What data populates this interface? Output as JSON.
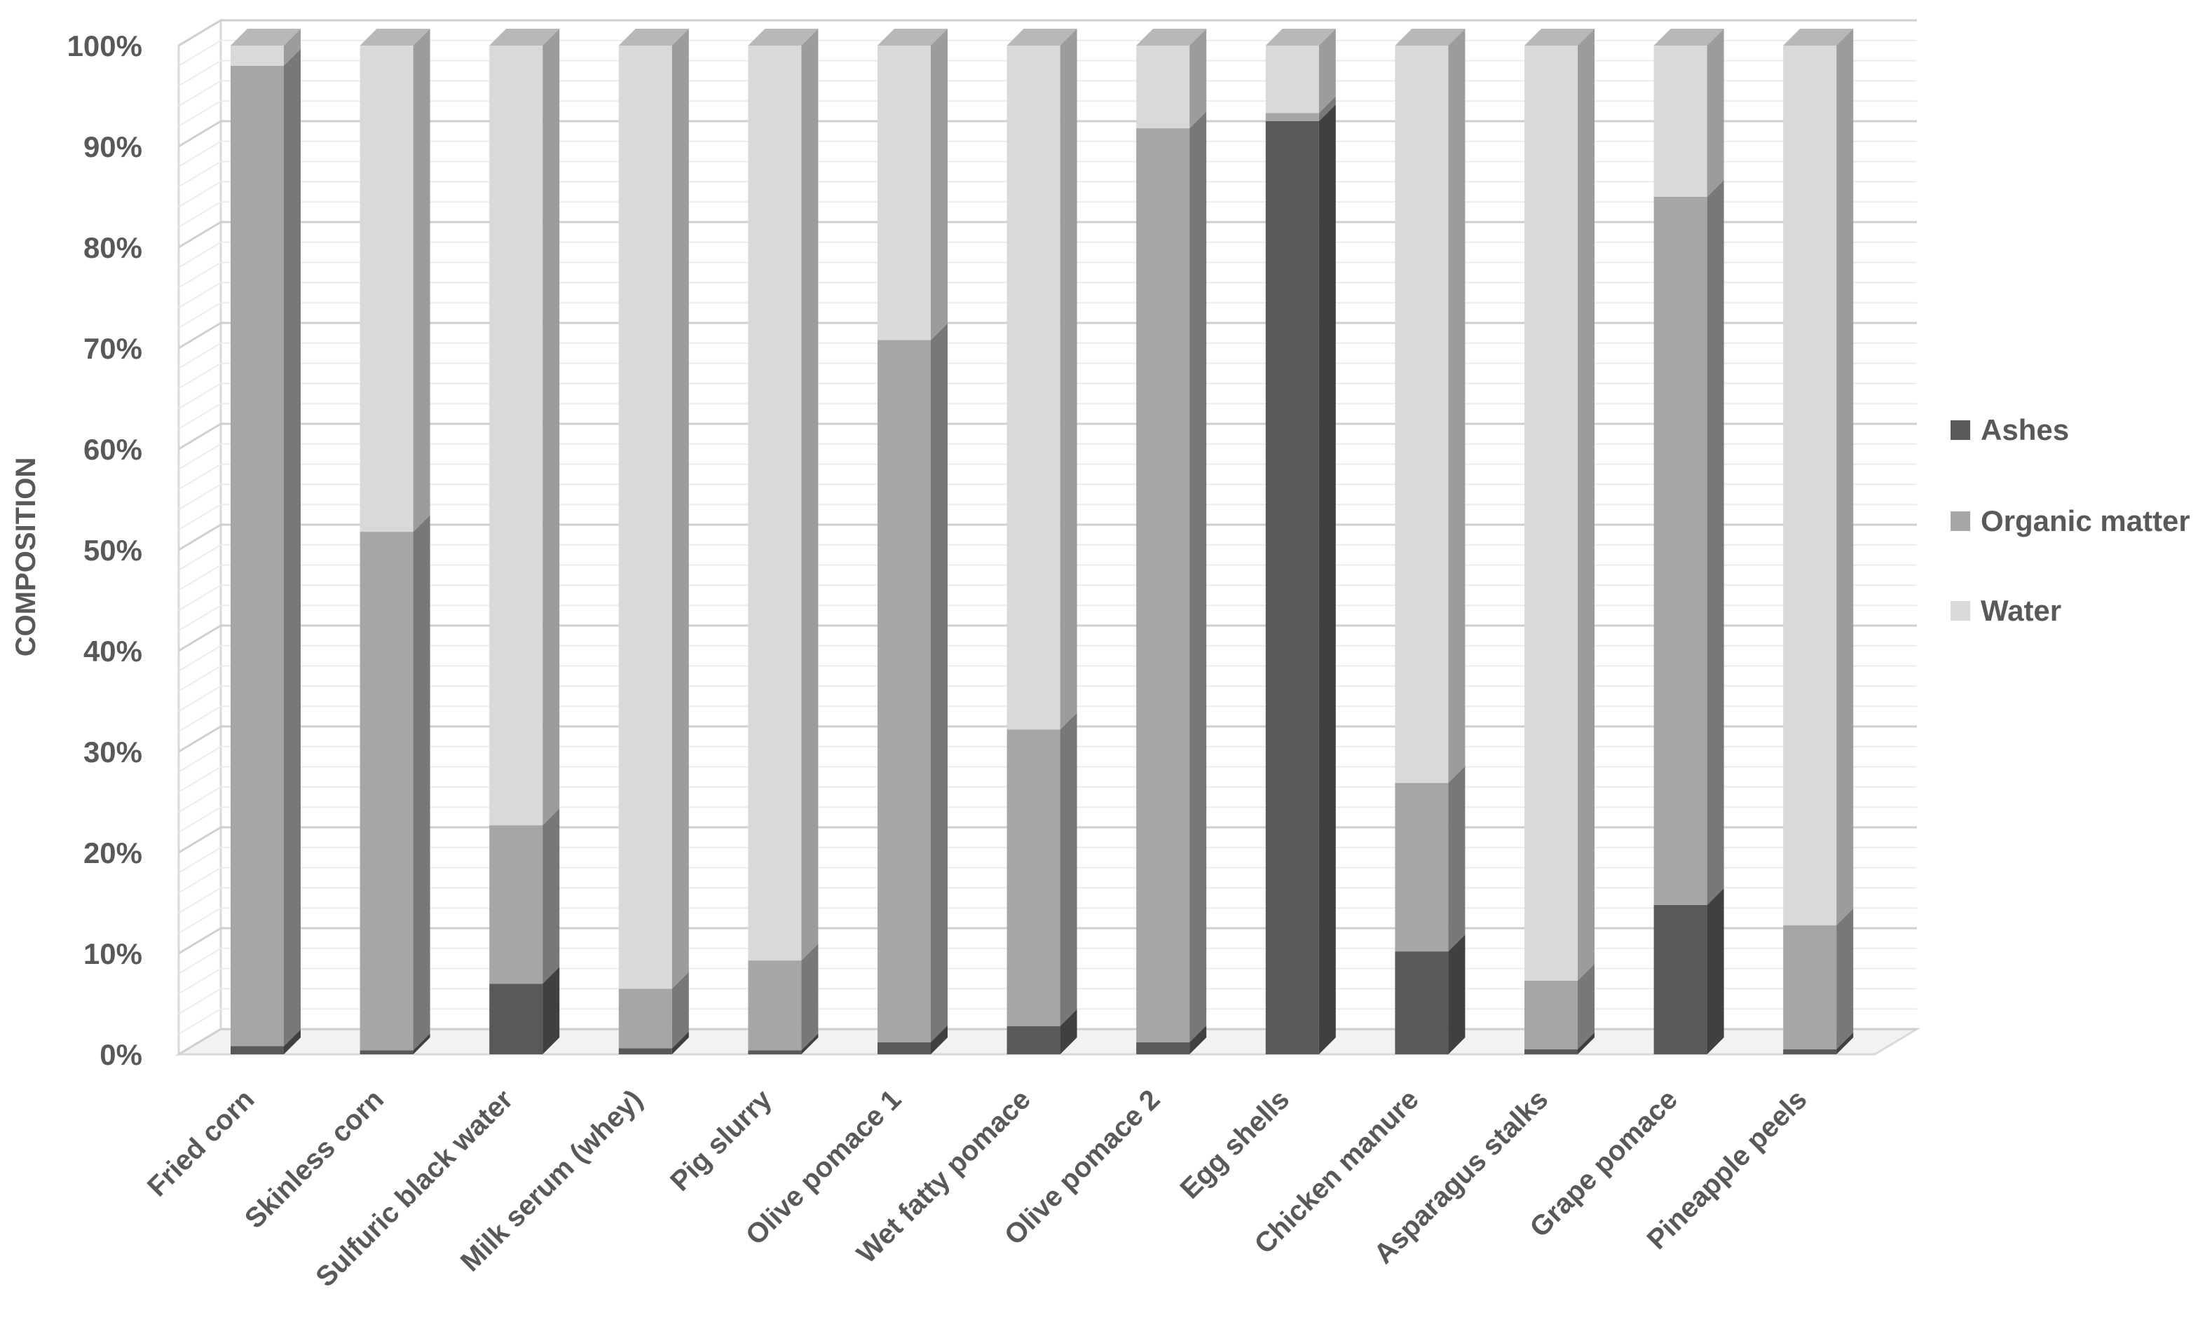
{
  "chart_data": {
    "type": "bar",
    "stacked": "percent",
    "ylabel": "COMPOSITION",
    "ylim": [
      0,
      100
    ],
    "y_ticks": [
      "0%",
      "10%",
      "20%",
      "30%",
      "40%",
      "50%",
      "60%",
      "70%",
      "80%",
      "90%",
      "100%"
    ],
    "grid": true,
    "legend_position": "right",
    "categories": [
      "Fried corn",
      "Skinless corn",
      "Sulfuric black water",
      "Milk serum (whey)",
      "Pig slurry",
      "Olive pomace 1",
      "Wet fatty pomace",
      "Olive pomace 2",
      "Egg shells",
      "Chicken manure",
      "Asparagus stalks",
      "Grape pomace",
      "Pineapple peels"
    ],
    "series": [
      {
        "name": "Ashes",
        "color": "#595959",
        "values": [
          0.8,
          0.4,
          7.0,
          0.6,
          0.4,
          1.2,
          2.8,
          1.2,
          92.5,
          10.2,
          0.5,
          14.8,
          0.5
        ]
      },
      {
        "name": "Organic matter",
        "color": "#a6a6a6",
        "values": [
          97.2,
          51.4,
          15.7,
          5.9,
          8.9,
          69.6,
          29.4,
          90.6,
          0.8,
          16.7,
          6.8,
          70.2,
          12.3
        ]
      },
      {
        "name": "Water",
        "color": "#d9d9d9",
        "values": [
          2.0,
          48.2,
          77.3,
          93.5,
          90.7,
          29.2,
          67.8,
          8.2,
          6.7,
          73.1,
          92.7,
          15.0,
          87.2
        ]
      }
    ]
  }
}
